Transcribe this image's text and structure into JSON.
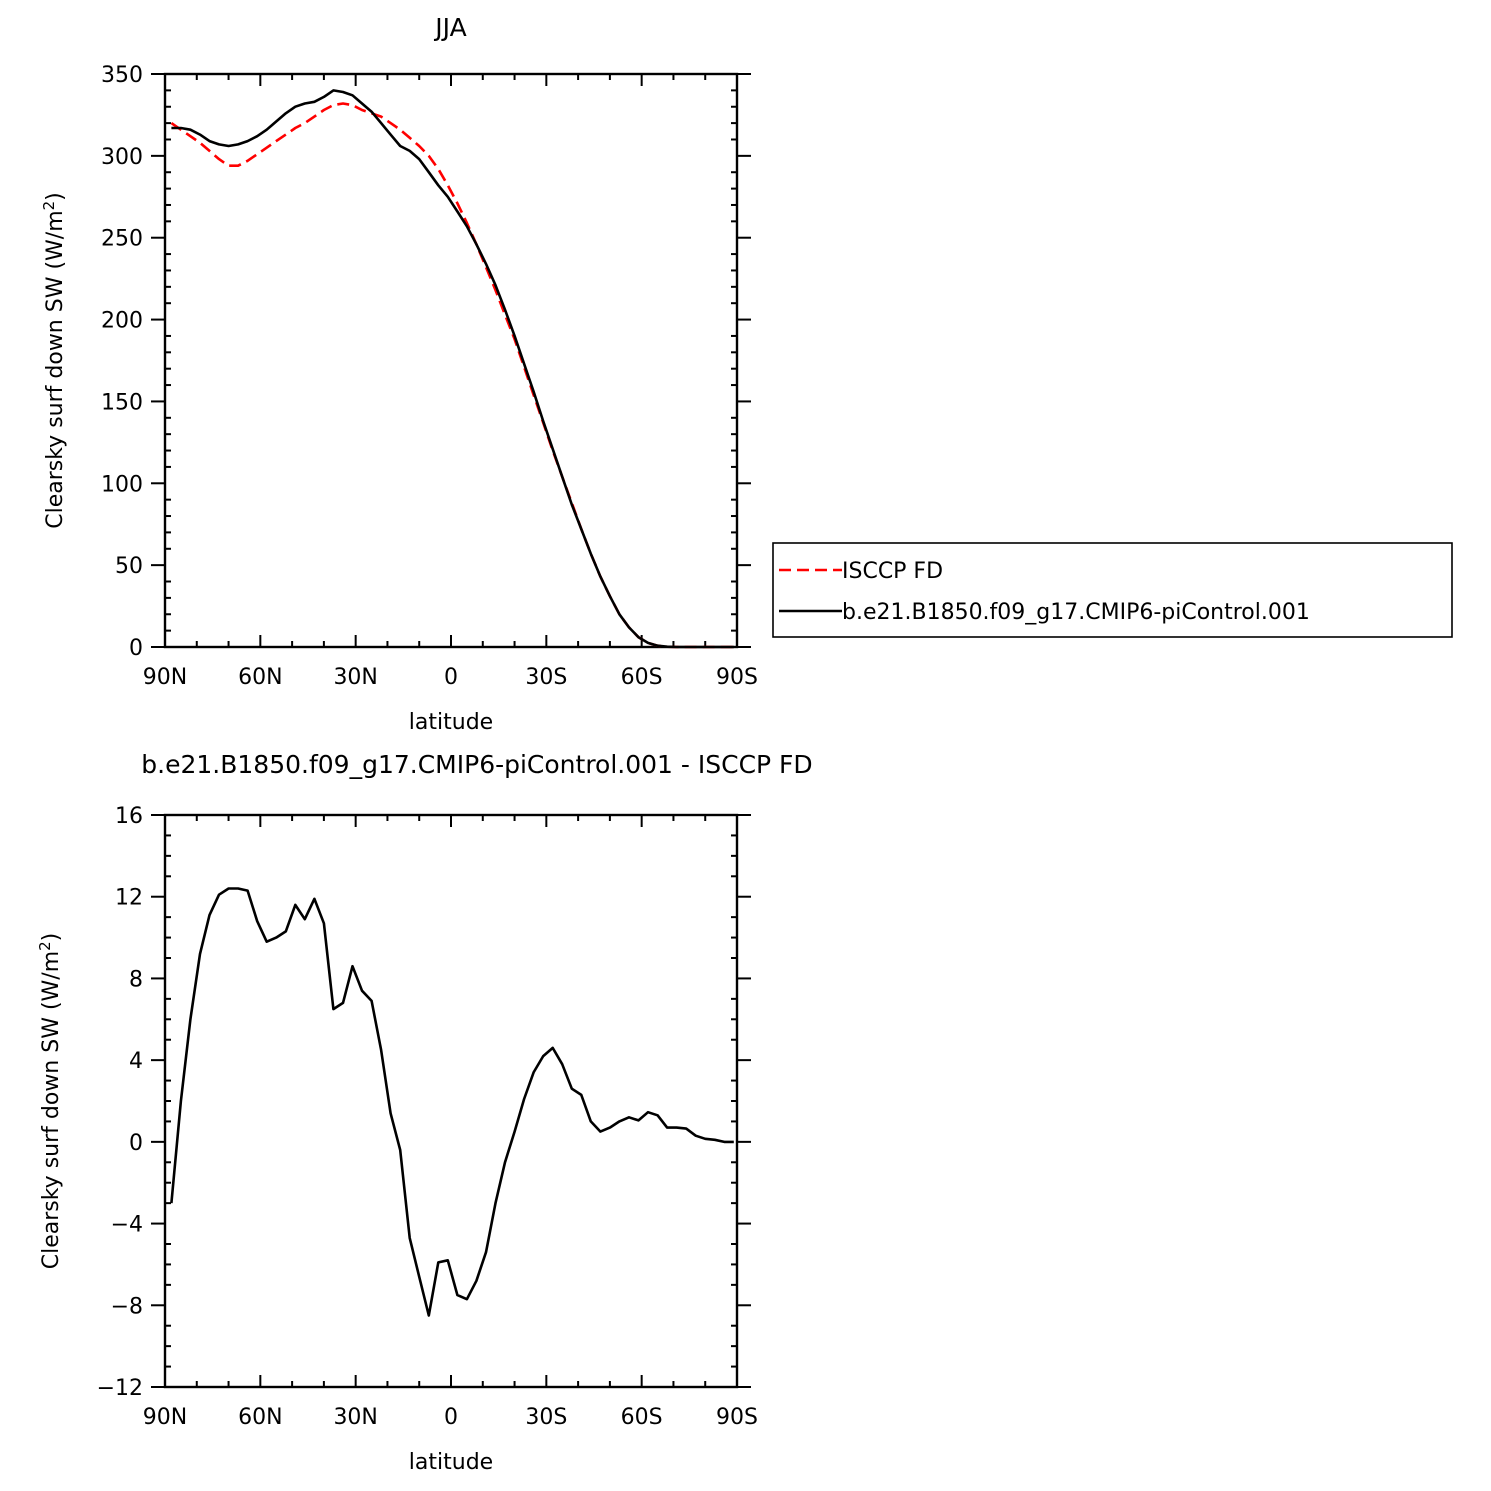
{
  "chart_data": [
    {
      "type": "line",
      "title": "JJA",
      "xlabel": "latitude",
      "ylabel": "Clearsky surf down SW (W/m²)",
      "ylabel_base": "Clearsky surf down SW (W/m",
      "ylabel_sup": "2",
      "ylabel_end": ")",
      "xlim": [
        90,
        -90
      ],
      "ylim": [
        0,
        350
      ],
      "xticks": [
        {
          "value": 90,
          "label": "90N"
        },
        {
          "value": 60,
          "label": "60N"
        },
        {
          "value": 30,
          "label": "30N"
        },
        {
          "value": 0,
          "label": "0"
        },
        {
          "value": -30,
          "label": "30S"
        },
        {
          "value": -60,
          "label": "60S"
        },
        {
          "value": -90,
          "label": "90S"
        }
      ],
      "yticks": [
        {
          "value": 0,
          "label": "0"
        },
        {
          "value": 50,
          "label": "50"
        },
        {
          "value": 100,
          "label": "100"
        },
        {
          "value": 150,
          "label": "150"
        },
        {
          "value": 200,
          "label": "200"
        },
        {
          "value": 250,
          "label": "250"
        },
        {
          "value": 300,
          "label": "300"
        },
        {
          "value": 350,
          "label": "350"
        }
      ],
      "legend": {
        "placement": "right"
      },
      "series": [
        {
          "name": "ISCCP FD",
          "color": "#ff0000",
          "style": "dashed",
          "x": [
            88,
            85,
            82,
            79,
            76,
            73,
            70,
            67,
            64,
            61,
            58,
            55,
            52,
            49,
            46,
            43,
            40,
            37,
            34,
            31,
            28,
            25,
            22,
            19,
            16,
            13,
            10,
            7,
            4,
            1,
            -2,
            -5,
            -8,
            -11,
            -14,
            -17,
            -20,
            -23,
            -26,
            -29,
            -32,
            -35,
            -38,
            -41,
            -44,
            -47,
            -50,
            -53,
            -56,
            -59,
            -62,
            -65,
            -68,
            -71,
            -74,
            -77,
            -80,
            -83,
            -86,
            -89
          ],
          "y": [
            320,
            316,
            312,
            308,
            303,
            298,
            294,
            294,
            297,
            301,
            305,
            309,
            313,
            317,
            320,
            324,
            328,
            331,
            332,
            331,
            328,
            326,
            324,
            320,
            316,
            311,
            306,
            300,
            292,
            282,
            271,
            259,
            246,
            232,
            218,
            203,
            188,
            171,
            154,
            137,
            120,
            104,
            88,
            72,
            57,
            43,
            31,
            20,
            12,
            6,
            2.5,
            0.8,
            0.2,
            0,
            0,
            0,
            0,
            0,
            0,
            0
          ]
        },
        {
          "name": "b.e21.B1850.f09_g17.CMIP6-piControl.001",
          "color": "#000000",
          "style": "solid",
          "x": [
            88,
            85,
            82,
            79,
            76,
            73,
            70,
            67,
            64,
            61,
            58,
            55,
            52,
            49,
            46,
            43,
            40,
            37,
            34,
            31,
            28,
            25,
            22,
            19,
            16,
            13,
            10,
            7,
            4,
            1,
            -2,
            -5,
            -8,
            -11,
            -14,
            -17,
            -20,
            -23,
            -26,
            -29,
            -32,
            -35,
            -38,
            -41,
            -44,
            -47,
            -50,
            -53,
            -56,
            -59,
            -62,
            -65,
            -68,
            -71,
            -74,
            -77,
            -80,
            -83,
            -86,
            -89
          ],
          "y": [
            317,
            317,
            316,
            313,
            309,
            307,
            306,
            307,
            309,
            312,
            316,
            321,
            326,
            330,
            332,
            333,
            336,
            340,
            339,
            337,
            332,
            327,
            320,
            313,
            306,
            303,
            298,
            290,
            282,
            275,
            266,
            257,
            246,
            234,
            221,
            206,
            190,
            173,
            156,
            138,
            121,
            104,
            87,
            72,
            57,
            43,
            31,
            20,
            12,
            6,
            2.5,
            0.8,
            0.2,
            0,
            0,
            0,
            0,
            0,
            0,
            0
          ]
        }
      ]
    },
    {
      "type": "line",
      "title": "b.e21.B1850.f09_g17.CMIP6-piControl.001 - ISCCP FD",
      "xlabel": "latitude",
      "ylabel": "Clearsky surf down SW (W/m²)",
      "ylabel_base": "Clearsky surf down SW (W/m",
      "ylabel_sup": "2",
      "ylabel_end": ")",
      "xlim": [
        90,
        -90
      ],
      "ylim": [
        -12,
        16
      ],
      "xticks": [
        {
          "value": 90,
          "label": "90N"
        },
        {
          "value": 60,
          "label": "60N"
        },
        {
          "value": 30,
          "label": "30N"
        },
        {
          "value": 0,
          "label": "0"
        },
        {
          "value": -30,
          "label": "30S"
        },
        {
          "value": -60,
          "label": "60S"
        },
        {
          "value": -90,
          "label": "90S"
        }
      ],
      "yticks": [
        {
          "value": -12,
          "label": "−12"
        },
        {
          "value": -8,
          "label": "−8"
        },
        {
          "value": -4,
          "label": "−4"
        },
        {
          "value": 0,
          "label": "0"
        },
        {
          "value": 4,
          "label": "4"
        },
        {
          "value": 8,
          "label": "8"
        },
        {
          "value": 12,
          "label": "12"
        },
        {
          "value": 16,
          "label": "16"
        }
      ],
      "series": [
        {
          "color": "#000000",
          "style": "solid",
          "x": [
            88,
            85,
            82,
            79,
            76,
            73,
            70,
            67,
            64,
            61,
            58,
            55,
            52,
            49,
            46,
            43,
            40,
            37,
            34,
            31,
            28,
            25,
            22,
            19,
            16,
            13,
            10,
            7,
            4,
            1,
            -2,
            -5,
            -8,
            -11,
            -14,
            -17,
            -20,
            -23,
            -26,
            -29,
            -32,
            -35,
            -38,
            -41,
            -44,
            -47,
            -50,
            -53,
            -56,
            -59,
            -62,
            -65,
            -68,
            -71,
            -74,
            -77,
            -80,
            -83,
            -86,
            -89
          ],
          "y": [
            -3,
            2,
            6,
            9.2,
            11.1,
            12.1,
            12.4,
            12.4,
            12.3,
            10.8,
            9.8,
            10,
            10.3,
            11.6,
            10.9,
            11.9,
            10.7,
            6.5,
            6.8,
            8.6,
            7.4,
            6.9,
            4.5,
            1.4,
            -0.4,
            -4.7,
            -6.6,
            -8.5,
            -5.9,
            -5.8,
            -7.5,
            -7.7,
            -6.8,
            -5.4,
            -3,
            -1,
            0.5,
            2.1,
            3.4,
            4.2,
            4.6,
            3.8,
            2.6,
            2.3,
            1,
            0.5,
            0.7,
            1,
            1.2,
            1.05,
            1.45,
            1.3,
            0.7,
            0.7,
            0.65,
            0.3,
            0.15,
            0.1,
            0,
            0
          ]
        }
      ]
    }
  ]
}
